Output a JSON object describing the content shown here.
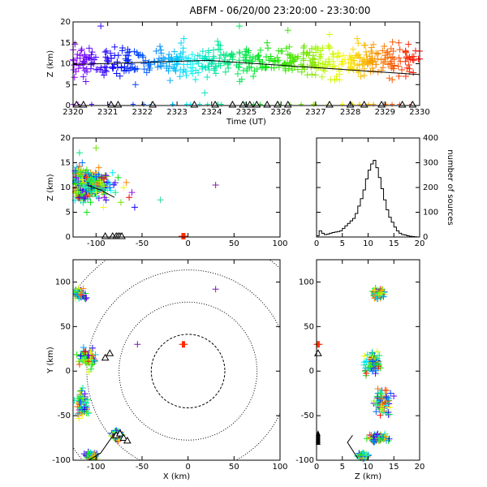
{
  "title": "ABFM - 06/20/00 23:20:00 - 23:30:00",
  "chart_data": [
    {
      "id": "time-height",
      "type": "scatter",
      "xlabel": "Time (UT)",
      "ylabel": "Z (km)",
      "xlim": [
        2320,
        2330
      ],
      "ylim": [
        0,
        20
      ],
      "xticks": [
        "2320",
        "2321",
        "2322",
        "2323",
        "2324",
        "2325",
        "2326",
        "2327",
        "2328",
        "2329",
        "2330"
      ],
      "yticks": [
        "0",
        "5",
        "10",
        "15",
        "20"
      ],
      "grid": false,
      "color_by": "time",
      "sources": [
        [
          2320.2,
          12
        ],
        [
          2320.4,
          8
        ],
        [
          2320.6,
          10
        ],
        [
          2320.8,
          19
        ],
        [
          2321.0,
          10.5
        ],
        [
          2321.2,
          14
        ],
        [
          2321.4,
          9
        ],
        [
          2321.6,
          11
        ],
        [
          2321.8,
          5
        ],
        [
          2322.0,
          12
        ],
        [
          2322.2,
          8.5
        ],
        [
          2322.4,
          13
        ],
        [
          2322.6,
          10
        ],
        [
          2322.8,
          6
        ],
        [
          2323.0,
          11
        ],
        [
          2323.2,
          16
        ],
        [
          2323.4,
          9
        ],
        [
          2323.6,
          12
        ],
        [
          2323.8,
          3
        ],
        [
          2324.0,
          10
        ],
        [
          2324.2,
          14.5
        ],
        [
          2324.4,
          8
        ],
        [
          2324.6,
          11
        ],
        [
          2324.8,
          19
        ],
        [
          2325.0,
          12
        ],
        [
          2325.2,
          7
        ],
        [
          2325.4,
          10
        ],
        [
          2325.6,
          15
        ],
        [
          2325.8,
          9
        ],
        [
          2326.0,
          13
        ],
        [
          2326.2,
          18
        ],
        [
          2326.4,
          11
        ],
        [
          2326.6,
          8
        ],
        [
          2326.8,
          12
        ],
        [
          2327.0,
          14
        ],
        [
          2327.2,
          10
        ],
        [
          2327.4,
          17
        ],
        [
          2327.6,
          7
        ],
        [
          2327.8,
          12
        ],
        [
          2328.0,
          9
        ],
        [
          2328.2,
          16
        ],
        [
          2328.4,
          11
        ],
        [
          2328.6,
          13
        ],
        [
          2328.8,
          8
        ],
        [
          2329.0,
          12
        ],
        [
          2329.2,
          10
        ],
        [
          2329.4,
          15
        ],
        [
          2329.6,
          7
        ],
        [
          2329.8,
          11
        ],
        [
          2330.0,
          13
        ]
      ],
      "trend_line": [
        [
          2320,
          9.8
        ],
        [
          2323.9,
          10.8
        ],
        [
          2330,
          7.4
        ]
      ],
      "stations_x": [
        2320.1,
        2320.3,
        2321.1,
        2321.3,
        2322.3,
        2323.5,
        2324.1,
        2324.6,
        2324.9,
        2325.1,
        2325.3,
        2325.6,
        2325.9,
        2326.2,
        2327.4,
        2328.0,
        2328.4,
        2328.9,
        2329.5,
        2329.8
      ]
    },
    {
      "id": "x-z",
      "type": "scatter",
      "xlabel": "",
      "ylabel": "Z (km)",
      "xlim": [
        -125,
        100
      ],
      "ylim": [
        0,
        20
      ],
      "xticks": [
        "-100",
        "-50",
        "0",
        "50",
        "100"
      ],
      "yticks": [
        "0",
        "5",
        "10",
        "15",
        "20"
      ],
      "sources": [
        [
          -122,
          12
        ],
        [
          -118,
          8
        ],
        [
          -115,
          15
        ],
        [
          -112,
          10
        ],
        [
          -109,
          13
        ],
        [
          -106,
          7
        ],
        [
          -103,
          11
        ],
        [
          -100,
          9
        ],
        [
          -97,
          14
        ],
        [
          -94,
          12
        ],
        [
          -91,
          8
        ],
        [
          -88,
          11
        ],
        [
          -85,
          10
        ],
        [
          -82,
          13
        ],
        [
          -79,
          9
        ],
        [
          -76,
          12
        ],
        [
          -73,
          7
        ],
        [
          -70,
          10
        ],
        [
          -67,
          11
        ],
        [
          -64,
          8
        ],
        [
          -61,
          9
        ],
        [
          -58,
          6
        ],
        [
          -30,
          7.5
        ],
        [
          30,
          10.5
        ],
        [
          -118,
          17
        ],
        [
          -110,
          5
        ],
        [
          -100,
          18
        ],
        [
          -92,
          6
        ]
      ],
      "markers": [
        {
          "x": -5,
          "z": 0
        }
      ],
      "trend_line": [
        [
          -110,
          10.5
        ],
        [
          -95,
          9.5
        ],
        [
          -80,
          8
        ]
      ],
      "stations_x": [
        -90,
        -82,
        -78,
        -76,
        -74,
        -72
      ]
    },
    {
      "id": "source-histogram",
      "type": "bar",
      "ylabel": "number of sources",
      "xlim": [
        0,
        20
      ],
      "ylim": [
        0,
        400
      ],
      "xticks": [
        "0",
        "5",
        "10",
        "15",
        "20"
      ],
      "yticks": [
        "0",
        "100",
        "200",
        "300",
        "400"
      ],
      "bin_width": 0.5,
      "bins_start": [
        0,
        0.5,
        1,
        1.5,
        2,
        2.5,
        3,
        3.5,
        4,
        4.5,
        5,
        5.5,
        6,
        6.5,
        7,
        7.5,
        8,
        8.5,
        9,
        9.5,
        10,
        10.5,
        11,
        11.5,
        12,
        12.5,
        13,
        13.5,
        14,
        14.5,
        15,
        15.5,
        16,
        16.5,
        17,
        17.5,
        18,
        18.5,
        19,
        19.5
      ],
      "counts": [
        5,
        25,
        15,
        10,
        12,
        15,
        18,
        20,
        22,
        25,
        35,
        45,
        55,
        65,
        75,
        95,
        125,
        155,
        190,
        235,
        270,
        295,
        310,
        280,
        240,
        195,
        150,
        110,
        80,
        60,
        40,
        25,
        15,
        10,
        8,
        5,
        3,
        2,
        1,
        0
      ]
    },
    {
      "id": "plan-view",
      "type": "scatter",
      "xlabel": "X (km)",
      "ylabel": "Y (km)",
      "xlim": [
        -125,
        100
      ],
      "ylim": [
        -100,
        125
      ],
      "xticks": [
        "-100",
        "-50",
        "0",
        "50",
        "100"
      ],
      "yticks": [
        "-100",
        "-50",
        "0",
        "50",
        "100"
      ],
      "range_rings_km": [
        40,
        75,
        110,
        150
      ],
      "cluster_centers": [
        {
          "x": -118,
          "y": 87
        },
        {
          "x": -110,
          "y": 15
        },
        {
          "x": -115,
          "y": -35
        },
        {
          "x": -78,
          "y": -72
        },
        {
          "x": -105,
          "y": -95
        }
      ],
      "isolated_sources": [
        {
          "x": 30,
          "y": 92
        },
        {
          "x": -55,
          "y": 30
        }
      ],
      "stations": [
        [
          -90,
          15
        ],
        [
          -85,
          20
        ],
        [
          -78,
          -72
        ],
        [
          -74,
          -70
        ],
        [
          -70,
          -75
        ],
        [
          -66,
          -78
        ]
      ],
      "marker": {
        "x": -5,
        "y": 30
      },
      "track": [
        [
          -80,
          -70
        ],
        [
          -95,
          -92
        ],
        [
          -108,
          -100
        ]
      ]
    },
    {
      "id": "z-y",
      "type": "scatter",
      "xlabel": "Z (km)",
      "ylabel": "",
      "xlim": [
        0,
        20
      ],
      "ylim": [
        -100,
        125
      ],
      "xticks": [
        "0",
        "5",
        "10",
        "15",
        "20"
      ],
      "yticks": [
        "-100",
        "-50",
        "0",
        "50",
        "100"
      ],
      "cluster_centers": [
        {
          "z": 12,
          "y": 87
        },
        {
          "z": 11,
          "y": 10
        },
        {
          "z": 13,
          "y": -35
        },
        {
          "z": 12,
          "y": -75
        },
        {
          "z": 9,
          "y": -95
        }
      ],
      "stations_y": [
        -70,
        -72,
        -74,
        -76,
        -78,
        -80
      ],
      "marker": {
        "z": 0.3,
        "y": 30
      },
      "station_y": 20,
      "track": [
        [
          7,
          -72
        ],
        [
          6,
          -80
        ],
        [
          8,
          -98
        ]
      ]
    }
  ]
}
